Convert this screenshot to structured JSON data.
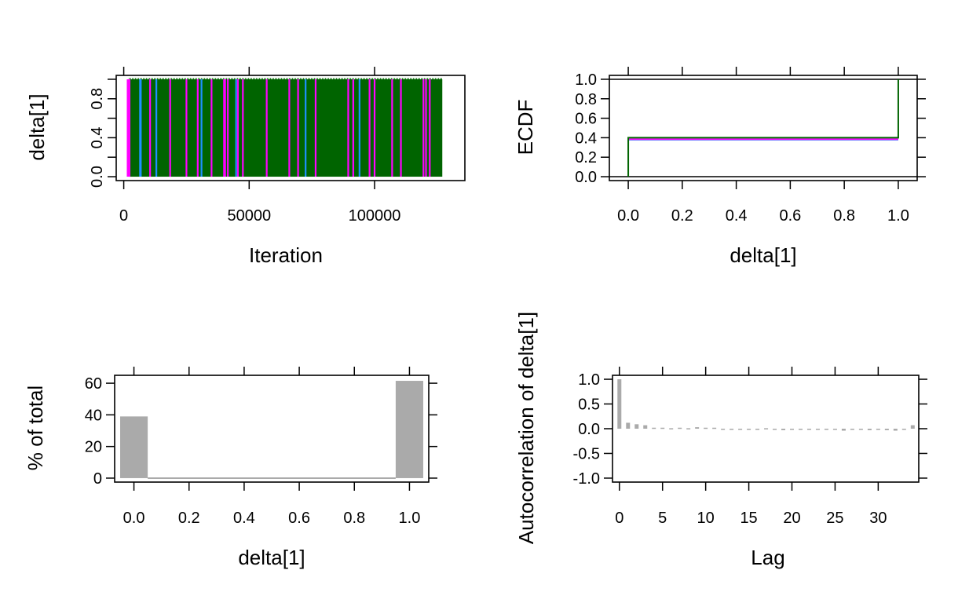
{
  "chart_data": [
    {
      "type": "line",
      "panel": "trace",
      "xlabel": "Iteration",
      "ylabel": "delta[1]",
      "xlim": [
        -3000,
        136000
      ],
      "ylim": [
        -0.04,
        1.04
      ],
      "xticks": [
        0,
        50000,
        100000
      ],
      "xtick_labels": [
        "0",
        "50000",
        "100000"
      ],
      "yticks": [
        0,
        0.4,
        0.8
      ],
      "ytick_labels": [
        "0.0",
        "0.4",
        "0.8"
      ],
      "y_minor_ticks": [
        0.2,
        0.6,
        1.0
      ],
      "x_range": [
        2000,
        127000
      ],
      "values": [
        0,
        1
      ],
      "grid": false,
      "series": [
        {
          "color": "#006400",
          "fill_from": 2000,
          "fill_to": 127000
        },
        {
          "color": "#ff00ff",
          "switch_points": [
            2000,
            2300,
            18500,
            40000,
            40400,
            45500,
            47500,
            100000,
            119500,
            120500
          ]
        },
        {
          "color": "#1e90ff",
          "switch_points": [
            6500,
            6800,
            13000,
            31000,
            44800,
            72500,
            94000
          ]
        },
        {
          "color": "#ff00ff",
          "switch_points": [
            10500,
            25000,
            29500,
            35000,
            41500,
            57000,
            66000,
            69500,
            76500,
            89500,
            91500,
            98000,
            107000,
            110500,
            122000
          ]
        }
      ]
    },
    {
      "type": "line",
      "panel": "ecdf",
      "xlabel": "delta[1]",
      "ylabel": "ECDF",
      "xlim": [
        -0.07,
        1.07
      ],
      "ylim": [
        -0.04,
        1.04
      ],
      "xticks": [
        0,
        0.2,
        0.4,
        0.6,
        0.8,
        1.0
      ],
      "xtick_labels": [
        "0.0",
        "0.2",
        "0.4",
        "0.6",
        "0.8",
        "1.0"
      ],
      "yticks": [
        0,
        0.2,
        0.4,
        0.6,
        0.8,
        1.0
      ],
      "ytick_labels": [
        "0.0",
        "0.2",
        "0.4",
        "0.6",
        "0.8",
        "1.0"
      ],
      "reference_lines": [
        0,
        1
      ],
      "grid": false,
      "series": [
        {
          "color": "#1e90ff",
          "x": [
            0,
            1
          ],
          "y": [
            0.38,
            0.38
          ]
        },
        {
          "color": "#ff00ff",
          "x": [
            0,
            1
          ],
          "y": [
            0.385,
            0.385
          ]
        },
        {
          "color": "#006400",
          "x": [
            0,
            0,
            1,
            1
          ],
          "y": [
            0,
            0.4,
            0.4,
            1.0
          ]
        }
      ]
    },
    {
      "type": "bar",
      "panel": "histogram",
      "xlabel": "delta[1]",
      "ylabel": "% of total",
      "xlim": [
        -0.07,
        1.07
      ],
      "ylim": [
        -2.5,
        65
      ],
      "xticks": [
        0,
        0.2,
        0.4,
        0.6,
        0.8,
        1.0
      ],
      "xtick_labels": [
        "0.0",
        "0.2",
        "0.4",
        "0.6",
        "0.8",
        "1.0"
      ],
      "yticks": [
        0,
        20,
        40,
        60
      ],
      "ytick_labels": [
        "0",
        "20",
        "40",
        "60"
      ],
      "bar_color": "#aaaaaa",
      "bin_width": 0.1,
      "bins": [
        {
          "center": 0.0,
          "value": 39
        },
        {
          "center": 1.0,
          "value": 61.5
        }
      ],
      "baseline": [
        0.05,
        0.95
      ],
      "grid": false
    },
    {
      "type": "bar",
      "panel": "autocorrelation",
      "xlabel": "Lag",
      "ylabel": "Autocorrelation of delta[1]",
      "xlim": [
        -0.8,
        34.7
      ],
      "ylim": [
        -1.08,
        1.08
      ],
      "xticks": [
        0,
        5,
        10,
        15,
        20,
        25,
        30
      ],
      "xtick_labels": [
        "0",
        "5",
        "10",
        "15",
        "20",
        "25",
        "30"
      ],
      "yticks": [
        -1,
        -0.5,
        0,
        0.5,
        1
      ],
      "ytick_labels": [
        "-1.0",
        "-0.5",
        "0.0",
        "0.5",
        "1.0"
      ],
      "bar_color": "#aaaaaa",
      "lags": [
        0,
        1,
        2,
        3,
        4,
        5,
        6,
        7,
        8,
        9,
        10,
        11,
        12,
        13,
        14,
        15,
        16,
        17,
        18,
        19,
        20,
        21,
        22,
        23,
        24,
        25,
        26,
        27,
        28,
        29,
        30,
        31,
        32,
        33,
        34
      ],
      "values": [
        1.0,
        0.12,
        0.09,
        0.07,
        0.02,
        0.02,
        0.01,
        0.02,
        0.01,
        0.03,
        0.02,
        0.02,
        -0.01,
        -0.02,
        -0.01,
        -0.02,
        -0.01,
        0.01,
        -0.02,
        -0.03,
        -0.02,
        -0.01,
        -0.02,
        -0.01,
        -0.01,
        -0.02,
        -0.04,
        -0.01,
        -0.02,
        -0.03,
        -0.02,
        -0.03,
        -0.04,
        -0.01,
        0.07
      ],
      "grid": false
    }
  ]
}
